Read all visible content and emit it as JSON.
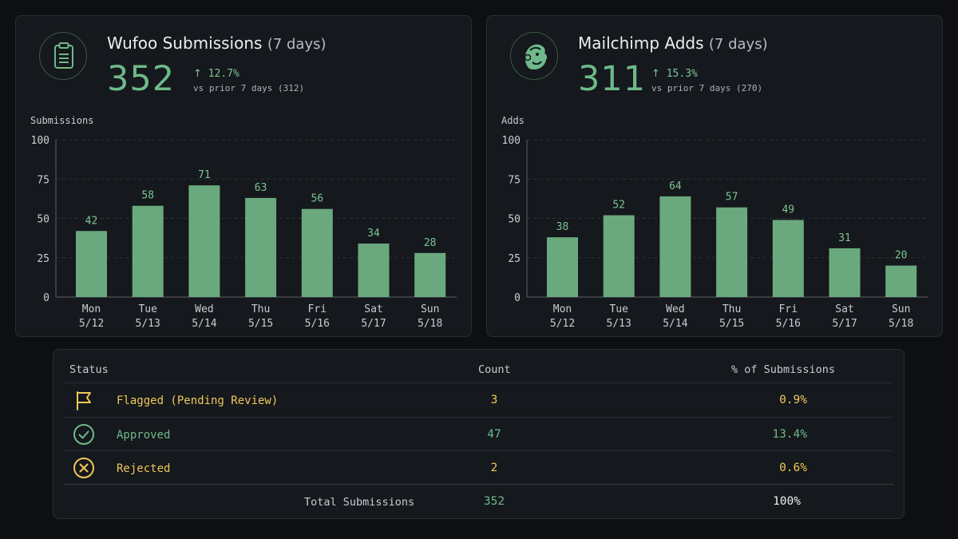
{
  "colors": {
    "background": "#0d0f12",
    "panel": "#15181c",
    "accent_green": "#6fb98a",
    "bar_green": "#6aa97e",
    "warning_yellow": "#f0c85a",
    "grid": "#2e3338"
  },
  "wufoo": {
    "icon": "clipboard-icon",
    "title": "Wufoo Submissions",
    "title_sub": "(7 days)",
    "total": "352",
    "delta": "12.7%",
    "vs": "vs prior 7 days (312)"
  },
  "mailchimp": {
    "icon": "mailchimp-logo-icon",
    "title": "Mailchimp Adds",
    "title_sub": "(7 days)",
    "total": "311",
    "delta": "15.3%",
    "vs": "vs prior 7 days (270)"
  },
  "chart_data": [
    {
      "type": "bar",
      "ylabel": "Submissions",
      "ylim": [
        0,
        100
      ],
      "yticks": [
        0,
        25,
        50,
        75,
        100
      ],
      "grid": true,
      "categories": [
        "Mon",
        "Tue",
        "Wed",
        "Thu",
        "Fri",
        "Sat",
        "Sun"
      ],
      "dates": [
        "5/12",
        "5/13",
        "5/14",
        "5/15",
        "5/16",
        "5/17",
        "5/18"
      ],
      "values": [
        42,
        58,
        71,
        63,
        56,
        34,
        28
      ]
    },
    {
      "type": "bar",
      "ylabel": "Adds",
      "ylim": [
        0,
        100
      ],
      "yticks": [
        0,
        25,
        50,
        75,
        100
      ],
      "grid": true,
      "categories": [
        "Mon",
        "Tue",
        "Wed",
        "Thu",
        "Fri",
        "Sat",
        "Sun"
      ],
      "dates": [
        "5/12",
        "5/13",
        "5/14",
        "5/15",
        "5/16",
        "5/17",
        "5/18"
      ],
      "values": [
        38,
        52,
        64,
        57,
        49,
        31,
        20
      ]
    }
  ],
  "status_table": {
    "headers": {
      "status": "Status",
      "count": "Count",
      "percent": "% of Submissions"
    },
    "rows": [
      {
        "icon": "flag-icon",
        "label": "Flagged (Pending Review)",
        "count": "3",
        "percent": "0.9%"
      },
      {
        "icon": "check-circle-icon",
        "label": "Approved",
        "count": "47",
        "percent": "13.4%"
      },
      {
        "icon": "x-circle-icon",
        "label": "Rejected",
        "count": "2",
        "percent": "0.6%"
      }
    ],
    "total": {
      "label": "Total Submissions",
      "count": "352",
      "percent": "100%"
    }
  }
}
